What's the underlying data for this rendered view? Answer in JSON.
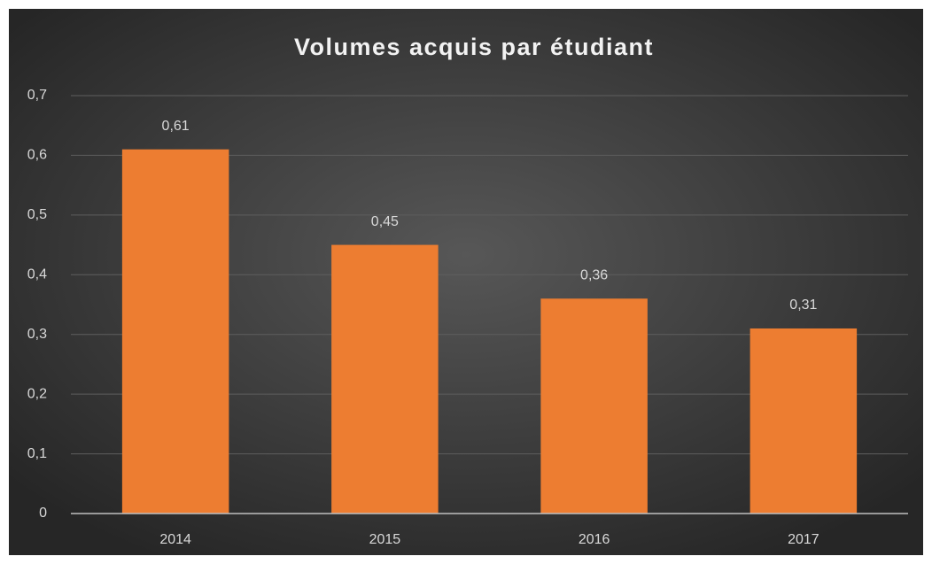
{
  "chart_data": {
    "type": "bar",
    "title": "Volumes acquis par étudiant",
    "categories": [
      "2014",
      "2015",
      "2016",
      "2017"
    ],
    "values": [
      0.61,
      0.45,
      0.36,
      0.31
    ],
    "value_labels": [
      "0,61",
      "0,45",
      "0,36",
      "0,31"
    ],
    "color": "#ed7d31",
    "ylim": [
      0,
      0.7
    ],
    "yticks": [
      0,
      {
        "value": 0.1,
        "label": "0,1"
      },
      {
        "value": 0.2,
        "label": "0,2"
      },
      {
        "value": 0.3,
        "label": "0,3"
      },
      {
        "value": 0.4,
        "label": "0,4"
      },
      {
        "value": 0.5,
        "label": "0,5"
      },
      {
        "value": 0.6,
        "label": "0,6"
      },
      {
        "value": 0.7,
        "label": "0,7"
      }
    ],
    "grid": true
  }
}
